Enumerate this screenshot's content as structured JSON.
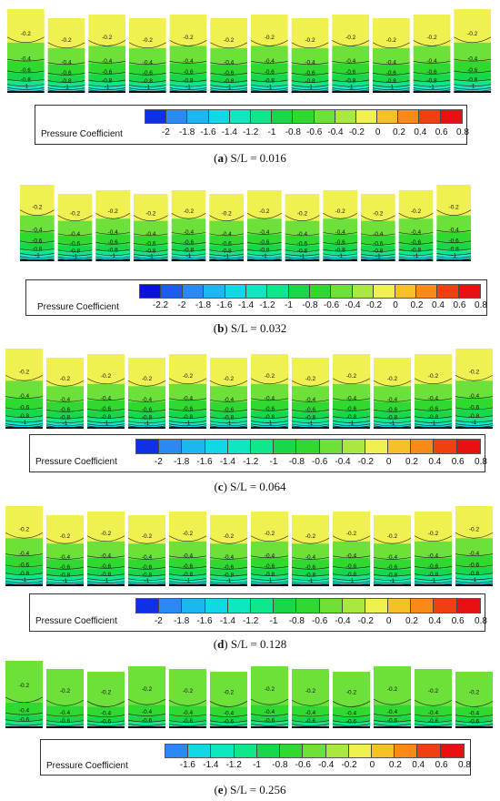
{
  "panels": [
    {
      "id": "a",
      "caption": "(a) S/L = 0.016",
      "caption_letter": "a",
      "caption_text": "S/L = 0.016",
      "colorbar_title": "Pressure Coefficient",
      "colorbar_ticks": [
        "-2",
        "-1.8",
        "-1.6",
        "-1.4",
        "-1.2",
        "-1",
        "-0.8",
        "-0.6",
        "-0.4",
        "-0.2",
        "0",
        "0.2",
        "0.4",
        "0.6",
        "0.8"
      ],
      "contour_labels": [
        "-0.2",
        "-0.4",
        "-0.6",
        "-0.8",
        "-1",
        "-1.2"
      ],
      "n_strips": 12
    },
    {
      "id": "b",
      "caption": "(b) S/L = 0.032",
      "caption_letter": "b",
      "caption_text": "S/L = 0.032",
      "colorbar_title": "Pressure Coefficient",
      "colorbar_ticks": [
        "-2.2",
        "-2",
        "-1.8",
        "-1.6",
        "-1.4",
        "-1.2",
        "-1",
        "-0.8",
        "-0.6",
        "-0.4",
        "-0.2",
        "0",
        "0.2",
        "0.4",
        "0.6",
        "0.8"
      ],
      "contour_labels": [
        "-0.2",
        "-0.4",
        "-0.6",
        "-0.8",
        "-1",
        "-1.2"
      ],
      "n_strips": 12
    },
    {
      "id": "c",
      "caption": "(c) S/L = 0.064",
      "caption_letter": "c",
      "caption_text": "S/L = 0.064",
      "colorbar_title": "Pressure Coefficient",
      "colorbar_ticks": [
        "-2",
        "-1.8",
        "-1.6",
        "-1.4",
        "-1.2",
        "-1",
        "-0.8",
        "-0.6",
        "-0.4",
        "-0.2",
        "0",
        "0.2",
        "0.4",
        "0.6",
        "0.8"
      ],
      "contour_labels": [
        "-0.2",
        "-0.4",
        "-0.6",
        "-0.8",
        "-1",
        "-1.2"
      ],
      "n_strips": 12
    },
    {
      "id": "d",
      "caption": "(d) S/L = 0.128",
      "caption_letter": "d",
      "caption_text": "S/L = 0.128",
      "colorbar_title": "Pressure Coefficient",
      "colorbar_ticks": [
        "-2",
        "-1.8",
        "-1.6",
        "-1.4",
        "-1.2",
        "-1",
        "-0.8",
        "-0.6",
        "-0.4",
        "-0.2",
        "0",
        "0.2",
        "0.4",
        "0.6",
        "0.8"
      ],
      "contour_labels": [
        "-0.2",
        "-0.4",
        "-0.6",
        "-0.8",
        "-1",
        "-1.2"
      ],
      "n_strips": 12
    },
    {
      "id": "e",
      "caption": "(e) S/L = 0.256",
      "caption_letter": "e",
      "caption_text": "S/L = 0.256",
      "colorbar_title": "Pressure Coefficient",
      "colorbar_ticks": [
        "-1.6",
        "-1.4",
        "-1.2",
        "-1",
        "-0.8",
        "-0.6",
        "-0.4",
        "-0.2",
        "0",
        "0.2",
        "0.4",
        "0.6",
        "0.8"
      ],
      "contour_labels": [
        "-0.2",
        "-0.4",
        "-0.6",
        "-0.8",
        "-1"
      ],
      "n_strips": 12
    }
  ],
  "colors": {
    "-2.2": "#0a14d8",
    "-2": "#1030e8",
    "-1.8": "#1e5cf0",
    "-1.6": "#2a8af4",
    "-1.4": "#1cb6f0",
    "-1.2": "#10d8e6",
    "-1": "#10e6c0",
    "-0.8": "#10e68a",
    "-0.6": "#18d84a",
    "-0.4": "#30d830",
    "-0.2": "#6ee03a",
    "0": "#a8e840",
    "0.2": "#f0f050",
    "0.4": "#f8c028",
    "0.6": "#f88a18",
    "0.8": "#f04010",
    "0.9": "#e81010"
  }
}
